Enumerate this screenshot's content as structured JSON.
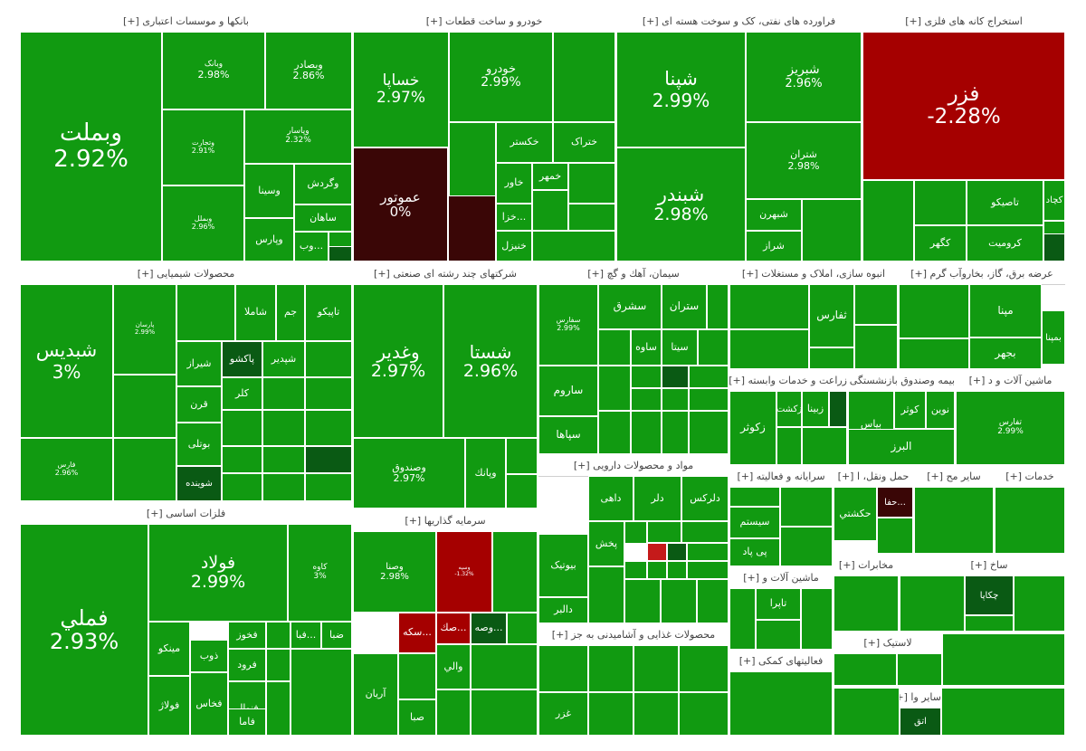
{
  "colors": {
    "positive": "#119a11",
    "neutral": "#3a0606",
    "negative": "#a50000",
    "darkgreen": "#0a5a14",
    "red_mid": "#c51a1a"
  },
  "chart_data": {
    "type": "heatmap",
    "sectors": [
      {
        "name": "بانکها و موسسات اعتباری",
        "expand": "[+]",
        "symbols": [
          {
            "sym": "وبملت",
            "pct": "2.92%",
            "value": 2.92
          },
          {
            "sym": "وبصادر",
            "pct": "2.86%",
            "value": 2.86
          },
          {
            "sym": "وتجارت",
            "pct": "2.91%",
            "value": 2.91
          },
          {
            "sym": "وبانک",
            "pct": "2.98%",
            "value": 2.98
          },
          {
            "sym": "وپاسار",
            "pct": "2.32%",
            "value": 2.32
          },
          {
            "sym": "وبملل",
            "pct": "2.96%",
            "value": 2.96
          },
          {
            "sym": "وگردش",
            "pct": "",
            "value": null
          },
          {
            "sym": "وسینا",
            "pct": "",
            "value": null
          },
          {
            "sym": "ساهان",
            "pct": "",
            "value": null
          },
          {
            "sym": "وپارس",
            "pct": "",
            "value": null
          },
          {
            "sym": "...وب",
            "pct": "",
            "value": null
          }
        ]
      },
      {
        "name": "خودرو و ساخت قطعات",
        "expand": "[+]",
        "symbols": [
          {
            "sym": "خساپا",
            "pct": "2.97%",
            "value": 2.97
          },
          {
            "sym": "خودرو",
            "pct": "2.99%",
            "value": 2.99
          },
          {
            "sym": "عموتور",
            "pct": "0%",
            "value": 0
          },
          {
            "sym": "خکستر",
            "pct": "",
            "value": null
          },
          {
            "sym": "ختراک",
            "pct": "",
            "value": null
          },
          {
            "sym": "خاور",
            "pct": "",
            "value": null
          },
          {
            "sym": "خمهر",
            "pct": "",
            "value": null
          },
          {
            "sym": "...خزا",
            "pct": "",
            "value": null
          },
          {
            "sym": "خنیزل",
            "pct": "",
            "value": null
          }
        ]
      },
      {
        "name": "فراورده های نفتی، کک و سوخت هسته ای",
        "expand": "[+]",
        "symbols": [
          {
            "sym": "شپنا",
            "pct": "2.99%",
            "value": 2.99
          },
          {
            "sym": "شبریز",
            "pct": "2.96%",
            "value": 2.96
          },
          {
            "sym": "شبندر",
            "pct": "2.98%",
            "value": 2.98
          },
          {
            "sym": "شتران",
            "pct": "2.98%",
            "value": 2.98
          },
          {
            "sym": "شبهرن",
            "pct": "",
            "value": null
          },
          {
            "sym": "شراز",
            "pct": "",
            "value": null
          }
        ]
      },
      {
        "name": "استخراج کانه های فلزی",
        "expand": "[+]",
        "symbols": [
          {
            "sym": "فزر",
            "pct": "-2.28%",
            "value": -2.28
          },
          {
            "sym": "کچاد",
            "pct": "",
            "value": null
          },
          {
            "sym": "تاصیکو",
            "pct": "",
            "value": null
          },
          {
            "sym": "کروميت",
            "pct": "",
            "value": null
          },
          {
            "sym": "کگهر",
            "pct": "",
            "value": null
          }
        ]
      },
      {
        "name": "محصولات شیمیایی",
        "expand": "[+]",
        "symbols": [
          {
            "sym": "شبدیس",
            "pct": "3%",
            "value": 3
          },
          {
            "sym": "تاپیکو",
            "pct": "",
            "value": null
          },
          {
            "sym": "جم",
            "pct": "",
            "value": null
          },
          {
            "sym": "شاملا",
            "pct": "",
            "value": null
          },
          {
            "sym": "پاکشو",
            "pct": "",
            "value": null
          },
          {
            "sym": "شپدیر",
            "pct": "",
            "value": null
          },
          {
            "sym": "شیراز",
            "pct": "",
            "value": null
          },
          {
            "sym": "کلر",
            "pct": "",
            "value": null
          },
          {
            "sym": "قرن",
            "pct": "",
            "value": null
          },
          {
            "sym": "بوتلی",
            "pct": "",
            "value": null
          },
          {
            "sym": "شوینده",
            "pct": "",
            "value": null
          },
          {
            "sym": "فارس",
            "pct": "2.96%",
            "value": 2.96
          },
          {
            "sym": "پارسان",
            "pct": "2.99%",
            "value": 2.99
          }
        ]
      },
      {
        "name": "شرکتهای چند رشته ای صنعتی",
        "expand": "[+]",
        "symbols": [
          {
            "sym": "وغدیر",
            "pct": "2.97%",
            "value": 2.97
          },
          {
            "sym": "شستا",
            "pct": "2.96%",
            "value": 2.96
          },
          {
            "sym": "وصندوق",
            "pct": "2.97%",
            "value": 2.97
          },
          {
            "sym": "وپانك",
            "pct": "",
            "value": null
          }
        ]
      },
      {
        "name": "سیمان، آهك و گچ",
        "expand": "[+]",
        "symbols": [
          {
            "sym": "سفارس",
            "pct": "2.99%",
            "value": 2.99
          },
          {
            "sym": "سشرق",
            "pct": "",
            "value": null
          },
          {
            "sym": "ستران",
            "pct": "",
            "value": null
          },
          {
            "sym": "ساروم",
            "pct": "",
            "value": null
          },
          {
            "sym": "سپاها",
            "pct": "",
            "value": null
          },
          {
            "sym": "ساوه",
            "pct": "",
            "value": null
          },
          {
            "sym": "سيتا",
            "pct": "",
            "value": null
          }
        ]
      },
      {
        "name": "انبوه سازی، املاک و مستغلات",
        "expand": "[+]",
        "symbols": [
          {
            "sym": "ثفارس",
            "pct": "",
            "value": null
          }
        ]
      },
      {
        "name": "عرضه برق، گاز، بخاروآب گرم",
        "expand": "[+]",
        "symbols": [
          {
            "sym": "بمپنا",
            "pct": "",
            "value": null
          },
          {
            "sym": "بجهر",
            "pct": "",
            "value": null
          },
          {
            "sym": "مپنا",
            "pct": "",
            "value": null
          }
        ]
      },
      {
        "name": "زراعت و خدمات وابسته",
        "expand": "[+]",
        "symbols": [
          {
            "sym": "زكوثر",
            "pct": "",
            "value": null
          },
          {
            "sym": "زكشت",
            "pct": "",
            "value": null
          },
          {
            "sym": "زبينا",
            "pct": "",
            "value": null
          }
        ]
      },
      {
        "name": "بیمه وصندوق بازنشستگی",
        "expand": "[+]",
        "symbols": [
          {
            "sym": "نوين",
            "pct": "",
            "value": null
          },
          {
            "sym": "كوثر",
            "pct": "",
            "value": null
          },
          {
            "sym": "بپاس",
            "pct": "",
            "value": null
          },
          {
            "sym": "البرز",
            "pct": "",
            "value": null
          }
        ]
      },
      {
        "name": "ماشین آلات و د",
        "expand": "[+]",
        "symbols": [
          {
            "sym": "تفارس",
            "pct": "2.99%",
            "value": 2.99
          }
        ]
      },
      {
        "name": "فلزات اساسی",
        "expand": "[+]",
        "symbols": [
          {
            "sym": "فملي",
            "pct": "2.93%",
            "value": 2.93
          },
          {
            "sym": "فولاد",
            "pct": "2.99%",
            "value": 2.99
          },
          {
            "sym": "کاوه",
            "pct": "3%",
            "value": 3
          },
          {
            "sym": "فخوز",
            "pct": "",
            "value": null
          },
          {
            "sym": "ذوب",
            "pct": "",
            "value": null
          },
          {
            "sym": "فرود",
            "pct": "",
            "value": null
          },
          {
            "sym": "مینکو",
            "pct": "",
            "value": null
          },
          {
            "sym": "فولاژ",
            "pct": "",
            "value": null
          },
          {
            "sym": "فخاس",
            "pct": "",
            "value": null
          },
          {
            "sym": "فنوال",
            "pct": "",
            "value": null
          },
          {
            "sym": "فاما",
            "pct": "",
            "value": null
          },
          {
            "sym": "...فبا",
            "pct": "",
            "value": null
          },
          {
            "sym": "ضبا",
            "pct": "",
            "value": null
          }
        ]
      },
      {
        "name": "سرمایه گذاریها",
        "expand": "[+]",
        "symbols": [
          {
            "sym": "وصنا",
            "pct": "2.98%",
            "value": 2.98
          },
          {
            "sym": "وسپه",
            "pct": "-1.32%",
            "value": -1.32
          },
          {
            "sym": "...سکه",
            "pct": "",
            "value": null
          },
          {
            "sym": "...صك",
            "pct": "",
            "value": null
          },
          {
            "sym": "...وصه",
            "pct": "",
            "value": null
          },
          {
            "sym": "آريان",
            "pct": "",
            "value": null
          },
          {
            "sym": "صبا",
            "pct": "",
            "value": null
          },
          {
            "sym": "والي",
            "pct": "",
            "value": null
          }
        ]
      },
      {
        "name": "مواد و محصولات دارویی",
        "expand": "[+]",
        "symbols": [
          {
            "sym": "دلرکس",
            "pct": "",
            "value": null
          },
          {
            "sym": "دلر",
            "pct": "",
            "value": null
          },
          {
            "sym": "داهی",
            "pct": "",
            "value": null
          },
          {
            "sym": "بيوتيک",
            "pct": "",
            "value": null
          },
          {
            "sym": "دالبر",
            "pct": "",
            "value": null
          },
          {
            "sym": "پخش",
            "pct": "",
            "value": null
          }
        ]
      },
      {
        "name": "محصولات غذایی و آشامیدنی به جز",
        "expand": "[+]",
        "symbols": [
          {
            "sym": "غزر",
            "pct": "",
            "value": null
          }
        ]
      },
      {
        "name": "سرایانه و فعالیته",
        "expand": "[+]",
        "symbols": [
          {
            "sym": "سيستم",
            "pct": "",
            "value": null
          },
          {
            "sym": "پی پاد",
            "pct": "",
            "value": null
          }
        ]
      },
      {
        "name": "حمل ونقل، ا",
        "expand": "[+]",
        "symbols": [
          {
            "sym": "حكشتي",
            "pct": "",
            "value": null
          },
          {
            "sym": "...حفا",
            "pct": "",
            "value": null
          }
        ]
      },
      {
        "name": "سایر مح",
        "expand": "[+]",
        "symbols": []
      },
      {
        "name": "خدمات",
        "expand": "[+]",
        "symbols": []
      },
      {
        "name": "ماشین آلات و",
        "expand": "[+]",
        "symbols": [
          {
            "sym": "تاپرا",
            "pct": "",
            "value": null
          }
        ]
      },
      {
        "name": "مخابرات",
        "expand": "[+]",
        "symbols": []
      },
      {
        "name": "ساخ",
        "expand": "[+]",
        "symbols": [
          {
            "sym": "چكاپا",
            "pct": "",
            "value": null
          }
        ]
      },
      {
        "name": "فعالیتهای کمکی",
        "expand": "[+]",
        "symbols": []
      },
      {
        "name": "لاستیک",
        "expand": "[+]",
        "symbols": []
      },
      {
        "name": "سایر وا",
        "expand": "[+]",
        "symbols": [
          {
            "sym": "اتق",
            "pct": "",
            "value": null
          }
        ]
      }
    ]
  }
}
